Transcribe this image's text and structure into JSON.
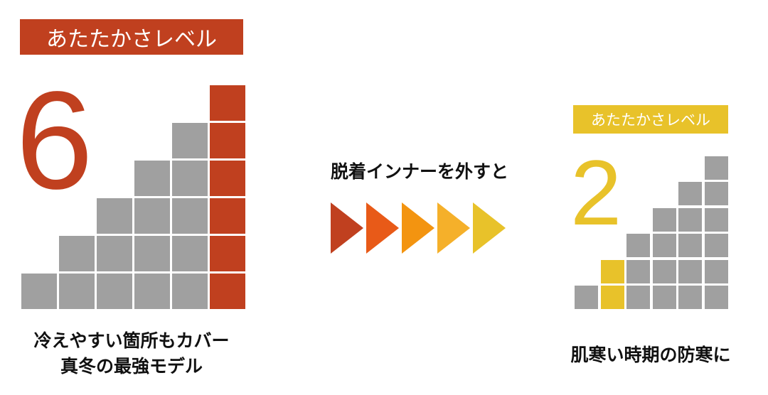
{
  "left": {
    "label": "あたたかさレベル",
    "level": "6",
    "level_value": 6,
    "caption_lines": [
      "冷えやすい箇所もカバー",
      "真冬の最強モデル"
    ],
    "accent": "#c0401f"
  },
  "middle": {
    "text": "脱着インナーを外すと",
    "arrow_colors": [
      "#c0401f",
      "#e85a18",
      "#f39410",
      "#f5b02a",
      "#e8c22a"
    ]
  },
  "right": {
    "label": "あたたかさレベル",
    "level": "2",
    "level_value": 2,
    "caption": "肌寒い時期の防寒に",
    "accent": "#e8c22a"
  },
  "scale_max": 6,
  "inactive_color": "#a0a0a0"
}
